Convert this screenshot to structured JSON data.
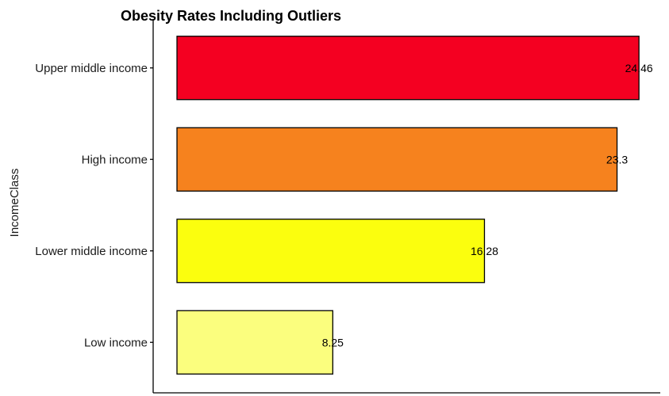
{
  "chart_data": {
    "type": "bar",
    "orientation": "horizontal",
    "title": "Obesity Rates Including Outliers",
    "xlabel": "",
    "ylabel": "IncomeClass",
    "categories": [
      "Upper middle income",
      "High income",
      "Lower middle income",
      "Low income"
    ],
    "values": [
      24.46,
      23.3,
      16.28,
      8.25
    ],
    "data_labels": [
      "24.46",
      "23.3",
      "16.28",
      "8.25"
    ],
    "colors": [
      "#f40021",
      "#f6821e",
      "#fbfe0e",
      "#fbfe7e"
    ],
    "bar_outline": "#000000",
    "xlim": [
      0,
      25
    ],
    "grid": false,
    "legend": "none"
  }
}
